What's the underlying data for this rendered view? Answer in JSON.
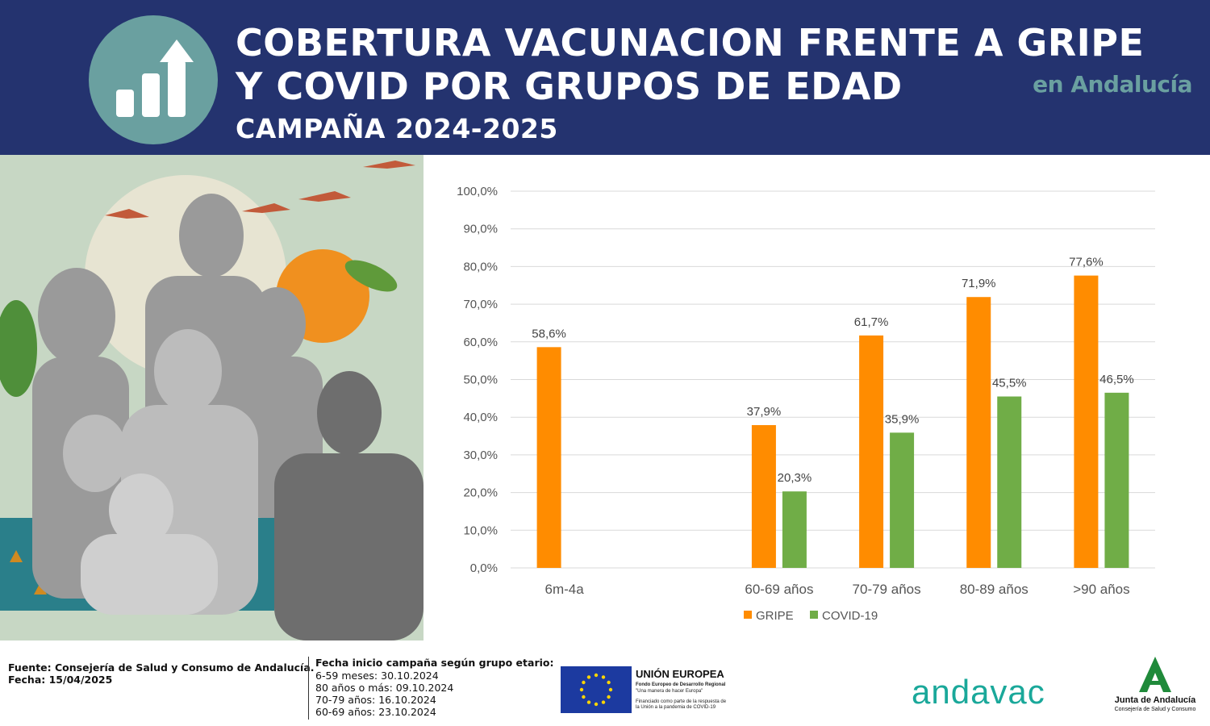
{
  "header": {
    "title_line1": "COBERTURA VACUNACION FRENTE A GRIPE",
    "title_line2": "Y COVID POR GRUPOS DE EDAD",
    "title_line3": "CAMPAÑA 2024-2025",
    "region": "en Andalucía",
    "icon": "bar-chart-arrow-icon"
  },
  "colors": {
    "header_bg": "#24336f",
    "accent_teal": "#6aa0a0",
    "gripe": "#ff8c00",
    "covid": "#70ad47",
    "grid": "#d9d9d9"
  },
  "chart_data": {
    "type": "bar",
    "categories": [
      "6m-4a",
      "60-69 años",
      "70-79 años",
      "80-89 años",
      ">90 años"
    ],
    "series": [
      {
        "name": "GRIPE",
        "values": [
          58.6,
          37.9,
          61.7,
          71.9,
          77.6
        ],
        "labels": [
          "58,6%",
          "37,9%",
          "61,7%",
          "71,9%",
          "77,6%"
        ]
      },
      {
        "name": "COVID-19",
        "values": [
          null,
          20.3,
          35.9,
          45.5,
          46.5
        ],
        "labels": [
          "",
          "20,3%",
          "35,9%",
          "45,5%",
          "46,5%"
        ]
      }
    ],
    "y_ticks": [
      "0,0%",
      "10,0%",
      "20,0%",
      "30,0%",
      "40,0%",
      "50,0%",
      "60,0%",
      "70,0%",
      "80,0%",
      "90,0%",
      "100,0%"
    ],
    "ylim": [
      0,
      100
    ],
    "grid": true,
    "legend_position": "bottom"
  },
  "footer": {
    "source": "Fuente: Consejería de Salud y Consumo de Andalucía.",
    "date": "Fecha: 15/04/2025",
    "campaign_title": "Fecha inicio campaña según grupo etario:",
    "campaign_dates": [
      "6-59 meses: 30.10.2024",
      "80 años o más: 09.10.2024",
      "70-79 años: 16.10.2024",
      "60-69 años: 23.10.2024"
    ],
    "eu_title": "UNIÓN EUROPEA",
    "eu_fund": "Fondo Europeo de Desarrollo Regional",
    "eu_motto": "\"Una manera de hacer Europa\"",
    "eu_note1": "Financiado como parte de la respuesta de",
    "eu_note2": "la Unión a la pandemia de COVID-19",
    "andavac": "andavac",
    "junta_name": "Junta de Andalucía",
    "junta_sub": "Consejería de Salud y Consumo"
  }
}
